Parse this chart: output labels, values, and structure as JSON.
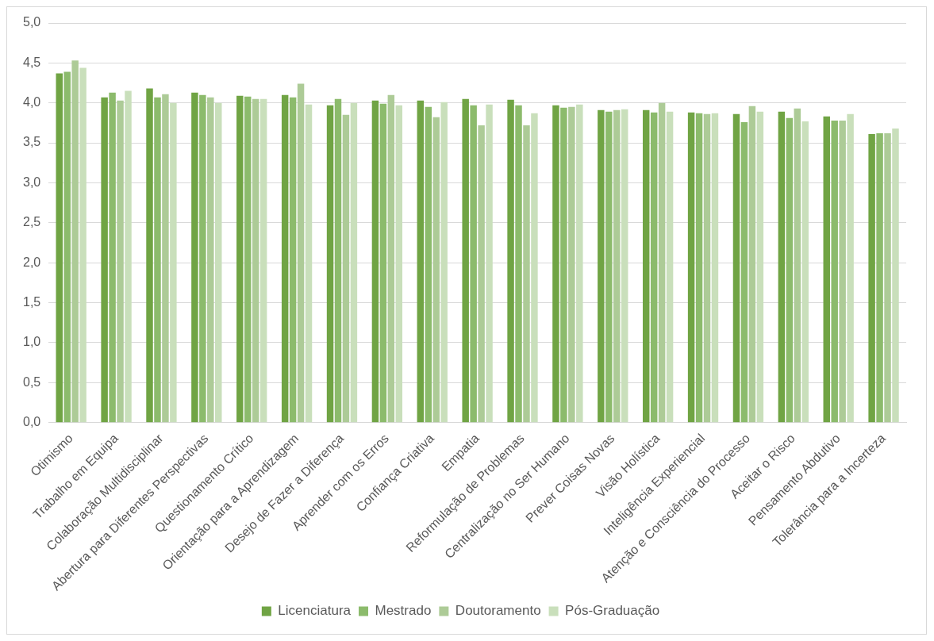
{
  "chart_data": {
    "type": "bar",
    "categories": [
      "Otimismo",
      "Trabalho em Equipa",
      "Colaboração Multidisciplinar",
      "Abertura para Diferentes Perspectivas",
      "Questionamento Crítico",
      "Orientação para a Aprendizagem",
      "Desejo de Fazer a Diferença",
      "Aprender com os Erros",
      "Confiança Criativa",
      "Empatia",
      "Reformulação de Problemas",
      "Centralização no Ser Humano",
      "Prever Coisas Novas",
      "Visão Holística",
      "Inteligência Experiencial",
      "Atenção e Consciência do Processo",
      "Aceitar o Risco",
      "Pensamento Abdutivo",
      "Tolerância para a Incerteza"
    ],
    "series": [
      {
        "name": "Licenciatura",
        "color": "#70a444",
        "values": [
          4.37,
          4.07,
          4.18,
          4.13,
          4.09,
          4.1,
          3.97,
          4.03,
          4.03,
          4.05,
          4.04,
          3.97,
          3.91,
          3.91,
          3.88,
          3.86,
          3.89,
          3.83,
          3.61
        ]
      },
      {
        "name": "Mestrado",
        "color": "#8cbb6c",
        "values": [
          4.39,
          4.13,
          4.07,
          4.1,
          4.08,
          4.07,
          4.05,
          3.99,
          3.95,
          3.97,
          3.97,
          3.94,
          3.89,
          3.88,
          3.87,
          3.76,
          3.81,
          3.78,
          3.62
        ]
      },
      {
        "name": "Doutoramento",
        "color": "#adcb97",
        "values": [
          4.53,
          4.03,
          4.11,
          4.07,
          4.05,
          4.24,
          3.85,
          4.1,
          3.82,
          3.72,
          3.72,
          3.95,
          3.91,
          4.0,
          3.86,
          3.96,
          3.93,
          3.78,
          3.62
        ]
      },
      {
        "name": "Pós-Graduação",
        "color": "#c9dfbb",
        "values": [
          4.44,
          4.15,
          4.0,
          4.0,
          4.05,
          3.98,
          4.0,
          3.97,
          4.01,
          3.98,
          3.87,
          3.98,
          3.92,
          3.89,
          3.87,
          3.89,
          3.77,
          3.86,
          3.68
        ]
      }
    ],
    "ylim": [
      0,
      5
    ],
    "yticks": [
      {
        "value": 0,
        "label": "0,0"
      },
      {
        "value": 0.5,
        "label": "0,5"
      },
      {
        "value": 1,
        "label": "1,0"
      },
      {
        "value": 1.5,
        "label": "1,5"
      },
      {
        "value": 2,
        "label": "2,0"
      },
      {
        "value": 2.5,
        "label": "2,5"
      },
      {
        "value": 3,
        "label": "3,0"
      },
      {
        "value": 3.5,
        "label": "3,5"
      },
      {
        "value": 4,
        "label": "4,0"
      },
      {
        "value": 4.5,
        "label": "4,5"
      },
      {
        "value": 5,
        "label": "5,0"
      }
    ],
    "grid": "y",
    "legend": "bottom"
  }
}
